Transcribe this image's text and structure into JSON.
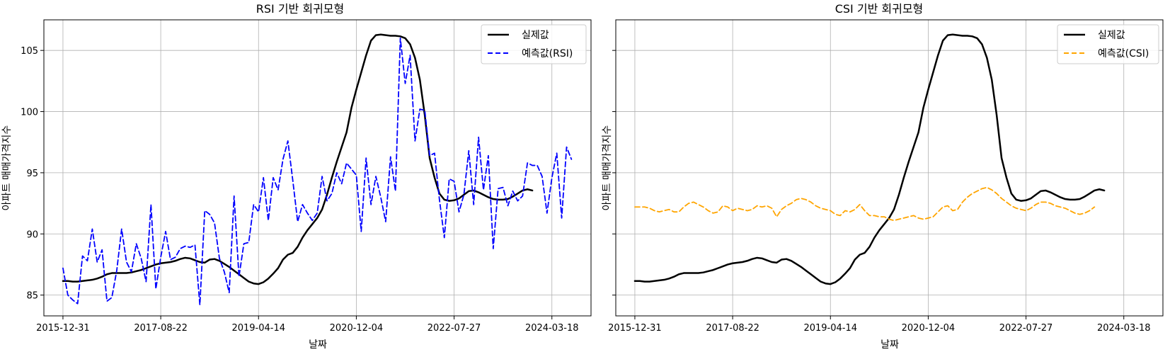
{
  "chart_data": [
    {
      "type": "line",
      "title": "RSI 기반 회귀모형",
      "xlabel": "날짜",
      "ylabel": "아파트 매매가격지수",
      "ylim": [
        83.3,
        107.5
      ],
      "xlim": [
        -3.9,
        108
      ],
      "grid": true,
      "legend_position": "top-right",
      "x_ticks": [
        {
          "x": 0,
          "label": "2015-12-31"
        },
        {
          "x": 20,
          "label": "2017-08-22"
        },
        {
          "x": 40,
          "label": "2019-04-14"
        },
        {
          "x": 60,
          "label": "2020-12-04"
        },
        {
          "x": 80,
          "label": "2022-07-27"
        },
        {
          "x": 100,
          "label": "2024-03-18"
        }
      ],
      "y_ticks": [
        85,
        90,
        95,
        100,
        105
      ],
      "series": [
        {
          "name": "실제값",
          "color": "#000000",
          "style": "solid",
          "values": [
            86.15,
            86.15,
            86.1,
            86.1,
            86.15,
            86.2,
            86.25,
            86.35,
            86.5,
            86.7,
            86.8,
            86.8,
            86.8,
            86.8,
            86.85,
            86.95,
            87.05,
            87.2,
            87.35,
            87.5,
            87.6,
            87.65,
            87.7,
            87.8,
            87.95,
            88.05,
            88.0,
            87.85,
            87.7,
            87.65,
            87.9,
            87.95,
            87.8,
            87.55,
            87.3,
            87.0,
            86.7,
            86.4,
            86.1,
            85.95,
            85.9,
            86.05,
            86.35,
            86.75,
            87.2,
            87.9,
            88.3,
            88.45,
            88.95,
            89.7,
            90.3,
            90.8,
            91.3,
            92.0,
            93.2,
            94.6,
            95.9,
            97.1,
            98.3,
            100.3,
            101.8,
            103.2,
            104.6,
            105.8,
            106.25,
            106.3,
            106.25,
            106.2,
            106.2,
            106.15,
            106.0,
            105.5,
            104.4,
            102.6,
            99.7,
            96.2,
            94.6,
            93.3,
            92.8,
            92.7,
            92.75,
            92.9,
            93.2,
            93.5,
            93.55,
            93.4,
            93.2,
            93.0,
            92.85,
            92.8,
            92.8,
            92.85,
            93.05,
            93.3,
            93.55,
            93.65,
            93.55
          ]
        },
        {
          "name": "예측값(RSI)",
          "color": "#0000ff",
          "style": "dashed",
          "values": [
            87.2,
            85.0,
            84.6,
            84.3,
            88.2,
            87.8,
            90.4,
            87.7,
            88.7,
            84.5,
            84.8,
            87.0,
            90.4,
            87.7,
            86.9,
            89.2,
            88.0,
            86.1,
            92.4,
            85.5,
            88.1,
            90.2,
            87.9,
            88.1,
            88.8,
            89.0,
            88.9,
            89.1,
            84.2,
            91.9,
            91.6,
            90.9,
            88.0,
            86.9,
            85.2,
            93.1,
            86.5,
            89.2,
            89.3,
            92.4,
            91.8,
            94.6,
            91.1,
            94.6,
            93.6,
            96.1,
            97.6,
            94.4,
            91.0,
            92.4,
            91.7,
            91.1,
            91.7,
            94.7,
            92.7,
            93.3,
            95.0,
            94.1,
            95.8,
            95.3,
            94.8,
            90.2,
            96.2,
            92.4,
            94.7,
            93.0,
            91.0,
            96.3,
            93.5,
            106.0,
            102.3,
            104.6,
            97.6,
            100.2,
            100.1,
            96.4,
            96.6,
            92.8,
            89.7,
            94.5,
            94.3,
            91.8,
            93.2,
            96.8,
            92.4,
            97.9,
            93.6,
            96.4,
            88.8,
            93.7,
            93.8,
            92.3,
            93.5,
            92.7,
            93.1,
            95.8,
            95.6,
            95.6,
            94.7,
            91.7,
            94.6,
            96.6,
            91.3,
            97.1,
            96.1
          ]
        }
      ]
    },
    {
      "type": "line",
      "title": "CSI 기반 회귀모형",
      "xlabel": "날짜",
      "ylabel": "아파트 매매가격지수",
      "ylim": [
        83.3,
        107.5
      ],
      "xlim": [
        -3.9,
        108
      ],
      "grid": true,
      "legend_position": "top-right",
      "x_ticks": [
        {
          "x": 0,
          "label": "2015-12-31"
        },
        {
          "x": 20,
          "label": "2017-08-22"
        },
        {
          "x": 40,
          "label": "2019-04-14"
        },
        {
          "x": 60,
          "label": "2020-12-04"
        },
        {
          "x": 80,
          "label": "2022-07-27"
        },
        {
          "x": 100,
          "label": "2024-03-18"
        }
      ],
      "y_ticks": [
        85,
        90,
        95,
        100,
        105
      ],
      "series": [
        {
          "name": "실제값",
          "color": "#000000",
          "style": "solid",
          "values": [
            86.15,
            86.15,
            86.1,
            86.1,
            86.15,
            86.2,
            86.25,
            86.35,
            86.5,
            86.7,
            86.8,
            86.8,
            86.8,
            86.8,
            86.85,
            86.95,
            87.05,
            87.2,
            87.35,
            87.5,
            87.6,
            87.65,
            87.7,
            87.8,
            87.95,
            88.05,
            88.0,
            87.85,
            87.7,
            87.65,
            87.9,
            87.95,
            87.8,
            87.55,
            87.3,
            87.0,
            86.7,
            86.4,
            86.1,
            85.95,
            85.9,
            86.05,
            86.35,
            86.75,
            87.2,
            87.9,
            88.3,
            88.45,
            88.95,
            89.7,
            90.3,
            90.8,
            91.3,
            92.0,
            93.2,
            94.6,
            95.9,
            97.1,
            98.3,
            100.3,
            101.8,
            103.2,
            104.6,
            105.8,
            106.25,
            106.3,
            106.25,
            106.2,
            106.2,
            106.15,
            106.0,
            105.5,
            104.4,
            102.6,
            99.7,
            96.2,
            94.6,
            93.3,
            92.8,
            92.7,
            92.75,
            92.9,
            93.2,
            93.5,
            93.55,
            93.4,
            93.2,
            93.0,
            92.85,
            92.8,
            92.8,
            92.85,
            93.05,
            93.3,
            93.55,
            93.65,
            93.55
          ]
        },
        {
          "name": "예측값(CSI)",
          "color": "#ffa500",
          "style": "dashed",
          "values": [
            92.2,
            92.2,
            92.2,
            92.1,
            91.9,
            91.8,
            91.9,
            92.0,
            91.8,
            91.8,
            92.2,
            92.5,
            92.6,
            92.4,
            92.2,
            91.9,
            91.7,
            91.8,
            92.3,
            92.2,
            91.9,
            92.1,
            92.0,
            91.9,
            92.0,
            92.3,
            92.2,
            92.3,
            92.1,
            91.4,
            92.0,
            92.3,
            92.5,
            92.8,
            92.9,
            92.8,
            92.6,
            92.3,
            92.1,
            92.0,
            91.9,
            91.6,
            91.5,
            91.9,
            91.8,
            92.0,
            92.4,
            91.9,
            91.5,
            91.5,
            91.4,
            91.4,
            91.2,
            91.1,
            91.2,
            91.3,
            91.4,
            91.5,
            91.3,
            91.2,
            91.3,
            91.4,
            91.8,
            92.2,
            92.3,
            91.9,
            92.0,
            92.6,
            93.0,
            93.3,
            93.5,
            93.7,
            93.8,
            93.6,
            93.3,
            92.9,
            92.6,
            92.3,
            92.1,
            92.0,
            91.9,
            92.1,
            92.4,
            92.6,
            92.6,
            92.5,
            92.3,
            92.2,
            92.1,
            91.9,
            91.7,
            91.6,
            91.7,
            91.9,
            92.2
          ]
        }
      ]
    }
  ]
}
